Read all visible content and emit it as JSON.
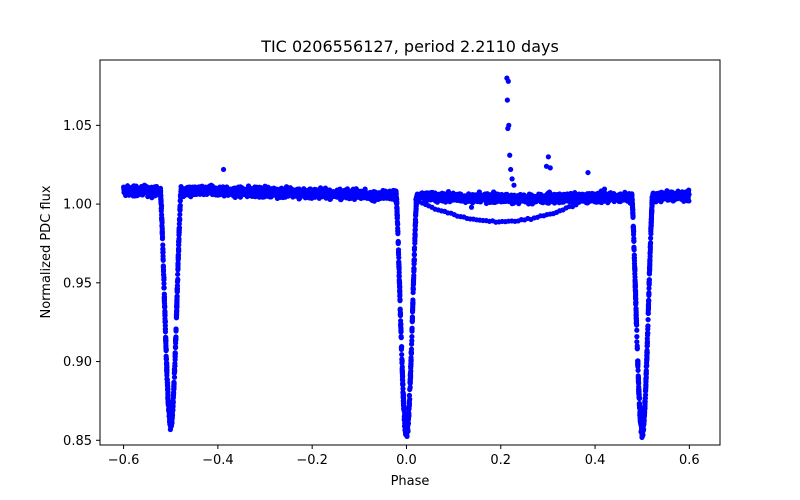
{
  "chart_data": {
    "type": "scatter",
    "title": "TIC 0206556127, period 2.2110 days",
    "xlabel": "Phase",
    "ylabel": "Normalized PDC flux",
    "xlim": [
      -0.65,
      0.665
    ],
    "ylim": [
      0.847,
      1.0915
    ],
    "xticks": [
      -0.6,
      -0.4,
      -0.2,
      0.0,
      0.2,
      0.4,
      0.6
    ],
    "xtick_labels": [
      "−0.6",
      "−0.4",
      "−0.2",
      "0.0",
      "0.2",
      "0.4",
      "0.6"
    ],
    "yticks": [
      0.85,
      0.9,
      0.95,
      1.0,
      1.05
    ],
    "ytick_labels": [
      "0.85",
      "0.90",
      "0.95",
      "1.00",
      "1.05"
    ],
    "color": "#0000ff",
    "grid": false,
    "eclipses": [
      {
        "center": -0.5,
        "depth": 0.86,
        "half_width": 0.022
      },
      {
        "center": 0.0,
        "depth": 0.858,
        "half_width": 0.022
      },
      {
        "center": 0.5,
        "depth": 0.859,
        "half_width": 0.022
      }
    ],
    "baseline": {
      "level": 1.006,
      "x_range": [
        -0.6,
        0.6
      ]
    },
    "flare": [
      {
        "x": 0.213,
        "y": 1.08
      },
      {
        "x": 0.216,
        "y": 1.078
      },
      {
        "x": 0.214,
        "y": 1.066
      },
      {
        "x": 0.217,
        "y": 1.05
      },
      {
        "x": 0.215,
        "y": 1.048
      },
      {
        "x": 0.219,
        "y": 1.031
      },
      {
        "x": 0.221,
        "y": 1.022
      },
      {
        "x": 0.224,
        "y": 1.016
      },
      {
        "x": 0.228,
        "y": 1.012
      },
      {
        "x": 0.301,
        "y": 1.03
      },
      {
        "x": 0.305,
        "y": 1.023
      },
      {
        "x": 0.297,
        "y": 1.024
      },
      {
        "x": 0.385,
        "y": 1.02
      },
      {
        "x": -0.388,
        "y": 1.022
      },
      {
        "x": 0.138,
        "y": 0.998
      }
    ],
    "dip_arc": {
      "x_range": [
        0.02,
        0.42
      ],
      "min": 0.989,
      "at": 0.2
    }
  }
}
